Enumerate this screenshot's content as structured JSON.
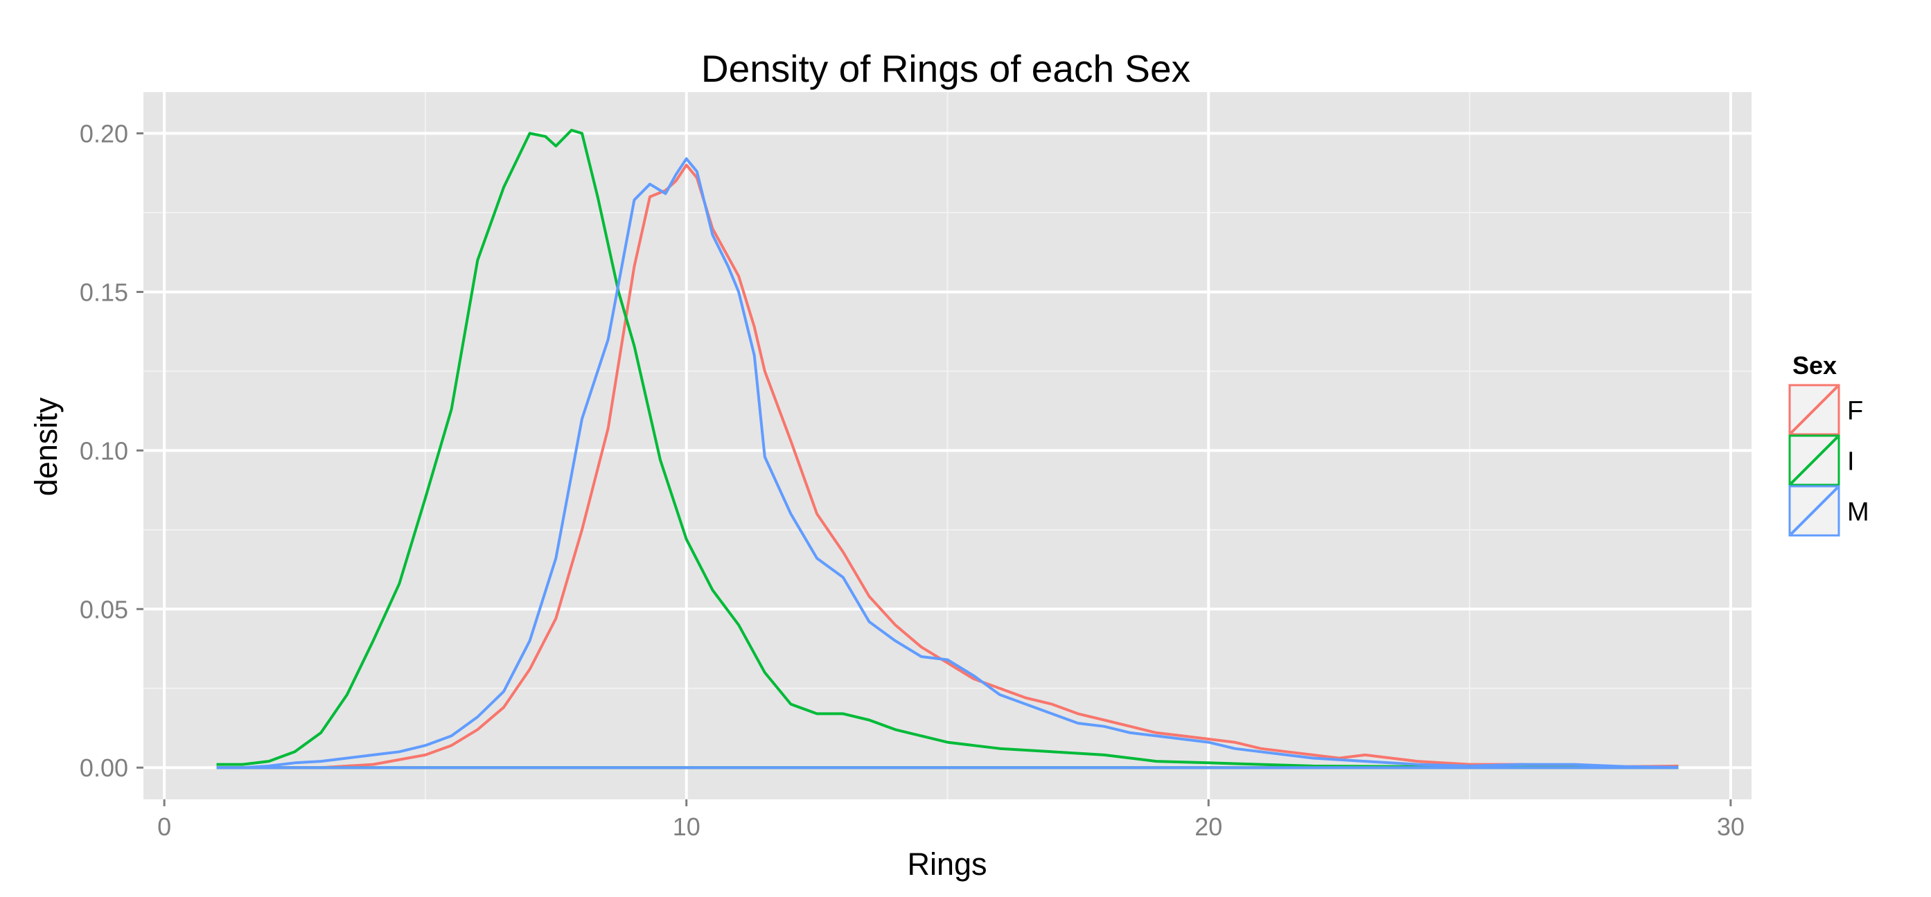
{
  "chart_data": {
    "type": "line",
    "title": "Density of Rings of each Sex",
    "xlabel": "Rings",
    "ylabel": "density",
    "xlim": [
      -0.4,
      30.4
    ],
    "ylim": [
      -0.01,
      0.213
    ],
    "x_ticks": [
      0,
      10,
      20,
      30
    ],
    "x_tick_labels": [
      "0",
      "10",
      "20",
      "30"
    ],
    "y_ticks": [
      0,
      0.05,
      0.1,
      0.15,
      0.2
    ],
    "y_tick_labels": [
      "0.00",
      "0.05",
      "0.10",
      "0.15",
      "0.20"
    ],
    "grid": true,
    "panel_background": "#e5e5e5",
    "legend": {
      "title": "Sex",
      "position": "right"
    },
    "series": [
      {
        "name": "F",
        "color": "#f8766d",
        "points": [
          [
            1,
            0
          ],
          [
            2,
            0
          ],
          [
            3,
            0
          ],
          [
            4,
            0.001
          ],
          [
            5,
            0.004
          ],
          [
            5.5,
            0.007
          ],
          [
            6,
            0.012
          ],
          [
            6.5,
            0.019
          ],
          [
            7,
            0.031
          ],
          [
            7.5,
            0.047
          ],
          [
            8,
            0.075
          ],
          [
            8.5,
            0.107
          ],
          [
            9,
            0.158
          ],
          [
            9.3,
            0.18
          ],
          [
            9.6,
            0.182
          ],
          [
            9.8,
            0.185
          ],
          [
            10,
            0.19
          ],
          [
            10.2,
            0.186
          ],
          [
            10.5,
            0.17
          ],
          [
            10.8,
            0.161
          ],
          [
            11,
            0.155
          ],
          [
            11.3,
            0.139
          ],
          [
            11.5,
            0.125
          ],
          [
            12,
            0.103
          ],
          [
            12.5,
            0.08
          ],
          [
            13,
            0.068
          ],
          [
            13.5,
            0.054
          ],
          [
            14,
            0.045
          ],
          [
            14.5,
            0.038
          ],
          [
            15,
            0.033
          ],
          [
            15.5,
            0.028
          ],
          [
            16,
            0.025
          ],
          [
            16.5,
            0.022
          ],
          [
            17,
            0.02
          ],
          [
            17.5,
            0.017
          ],
          [
            18,
            0.015
          ],
          [
            18.5,
            0.013
          ],
          [
            19,
            0.011
          ],
          [
            19.5,
            0.01
          ],
          [
            20,
            0.009
          ],
          [
            20.5,
            0.008
          ],
          [
            21,
            0.006
          ],
          [
            21.5,
            0.005
          ],
          [
            22,
            0.004
          ],
          [
            22.5,
            0.003
          ],
          [
            23,
            0.004
          ],
          [
            23.5,
            0.003
          ],
          [
            24,
            0.002
          ],
          [
            25,
            0.001
          ],
          [
            26,
            0.001
          ],
          [
            27,
            0.0005
          ],
          [
            28,
            0.0003
          ],
          [
            29,
            0.0005
          ]
        ]
      },
      {
        "name": "I",
        "color": "#00ba38",
        "points": [
          [
            1,
            0.001
          ],
          [
            1.5,
            0.001
          ],
          [
            2,
            0.002
          ],
          [
            2.5,
            0.005
          ],
          [
            3,
            0.011
          ],
          [
            3.5,
            0.023
          ],
          [
            4,
            0.04
          ],
          [
            4.5,
            0.058
          ],
          [
            5,
            0.085
          ],
          [
            5.5,
            0.113
          ],
          [
            6,
            0.16
          ],
          [
            6.5,
            0.183
          ],
          [
            7,
            0.2
          ],
          [
            7.3,
            0.199
          ],
          [
            7.5,
            0.196
          ],
          [
            7.8,
            0.201
          ],
          [
            8,
            0.2
          ],
          [
            8.3,
            0.18
          ],
          [
            8.7,
            0.15
          ],
          [
            9,
            0.133
          ],
          [
            9.5,
            0.097
          ],
          [
            10,
            0.072
          ],
          [
            10.5,
            0.056
          ],
          [
            11,
            0.045
          ],
          [
            11.5,
            0.03
          ],
          [
            12,
            0.02
          ],
          [
            12.5,
            0.017
          ],
          [
            13,
            0.017
          ],
          [
            13.5,
            0.015
          ],
          [
            14,
            0.012
          ],
          [
            14.5,
            0.01
          ],
          [
            15,
            0.008
          ],
          [
            15.5,
            0.007
          ],
          [
            16,
            0.006
          ],
          [
            17,
            0.005
          ],
          [
            18,
            0.004
          ],
          [
            19,
            0.002
          ],
          [
            20,
            0.0015
          ],
          [
            21,
            0.001
          ],
          [
            22,
            0.0005
          ],
          [
            23,
            0.0004
          ],
          [
            24,
            0.0003
          ],
          [
            25,
            0.0002
          ],
          [
            26,
            0.0001
          ],
          [
            27,
            0.0001
          ],
          [
            28,
            0.0001
          ],
          [
            29,
            0.0001
          ]
        ]
      },
      {
        "name": "M",
        "color": "#619cff",
        "points": [
          [
            1,
            0
          ],
          [
            1.5,
            0
          ],
          [
            2,
            0.0005
          ],
          [
            2.5,
            0.0015
          ],
          [
            3,
            0.002
          ],
          [
            3.5,
            0.003
          ],
          [
            4,
            0.004
          ],
          [
            4.5,
            0.005
          ],
          [
            5,
            0.007
          ],
          [
            5.5,
            0.01
          ],
          [
            6,
            0.016
          ],
          [
            6.5,
            0.024
          ],
          [
            7,
            0.04
          ],
          [
            7.5,
            0.066
          ],
          [
            8,
            0.11
          ],
          [
            8.5,
            0.135
          ],
          [
            9,
            0.179
          ],
          [
            9.3,
            0.184
          ],
          [
            9.6,
            0.181
          ],
          [
            9.8,
            0.187
          ],
          [
            10,
            0.192
          ],
          [
            10.2,
            0.188
          ],
          [
            10.5,
            0.168
          ],
          [
            10.8,
            0.158
          ],
          [
            11,
            0.15
          ],
          [
            11.3,
            0.13
          ],
          [
            11.5,
            0.098
          ],
          [
            12,
            0.08
          ],
          [
            12.5,
            0.066
          ],
          [
            13,
            0.06
          ],
          [
            13.5,
            0.046
          ],
          [
            14,
            0.04
          ],
          [
            14.5,
            0.035
          ],
          [
            15,
            0.034
          ],
          [
            15.5,
            0.029
          ],
          [
            16,
            0.023
          ],
          [
            16.5,
            0.02
          ],
          [
            17,
            0.017
          ],
          [
            17.5,
            0.014
          ],
          [
            18,
            0.013
          ],
          [
            18.5,
            0.011
          ],
          [
            19,
            0.01
          ],
          [
            19.5,
            0.009
          ],
          [
            20,
            0.008
          ],
          [
            20.5,
            0.006
          ],
          [
            21,
            0.005
          ],
          [
            22,
            0.003
          ],
          [
            23,
            0.002
          ],
          [
            24,
            0.001
          ],
          [
            25,
            0.0005
          ],
          [
            26,
            0.001
          ],
          [
            27,
            0.001
          ],
          [
            28,
            0.0003
          ],
          [
            29,
            0.0001
          ]
        ]
      }
    ]
  }
}
